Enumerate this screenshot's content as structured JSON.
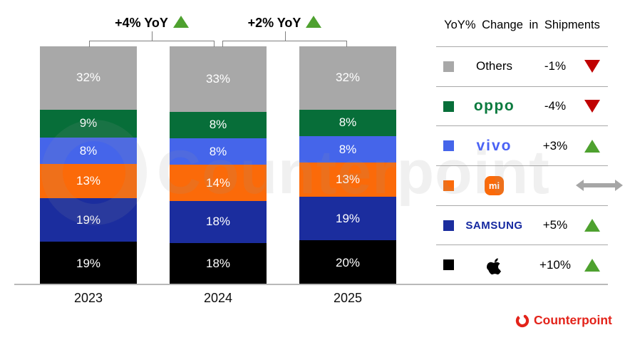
{
  "chart_data": {
    "type": "bar",
    "stacked": true,
    "title": "",
    "categories": [
      "2023",
      "2024",
      "2025"
    ],
    "series_top_to_bottom": [
      {
        "name": "Others",
        "color": "#a8a8a8",
        "values": [
          32,
          33,
          32
        ],
        "labels": [
          "32%",
          "33%",
          "32%"
        ]
      },
      {
        "name": "OPPO",
        "color": "#076e39",
        "values": [
          9,
          8,
          8
        ],
        "labels": [
          "9%",
          "8%",
          "8%"
        ]
      },
      {
        "name": "vivo",
        "color": "#4565ea",
        "values": [
          8,
          8,
          8
        ],
        "labels": [
          "8%",
          "8%",
          "8%"
        ]
      },
      {
        "name": "Xiaomi",
        "color": "#fb6a09",
        "values": [
          13,
          14,
          13
        ],
        "labels": [
          "13%",
          "14%",
          "13%"
        ]
      },
      {
        "name": "Samsung",
        "color": "#1b2d9e",
        "values": [
          19,
          18,
          19
        ],
        "labels": [
          "19%",
          "18%",
          "19%"
        ]
      },
      {
        "name": "Apple",
        "color": "#000000",
        "values": [
          19,
          18,
          20
        ],
        "labels": [
          "19%",
          "18%",
          "20%"
        ]
      }
    ],
    "annotations": [
      {
        "label": "+4% YoY",
        "between": [
          "2023",
          "2024"
        ],
        "direction": "up"
      },
      {
        "label": "+2% YoY",
        "between": [
          "2024",
          "2025"
        ],
        "direction": "up"
      }
    ],
    "value_unit": "%",
    "ylim": [
      0,
      100
    ],
    "grid": false,
    "legend_position": "right"
  },
  "legend": {
    "title": "YoY% Change in Shipments",
    "rows": [
      {
        "name": "Others",
        "display": "Others",
        "change": "-1%",
        "direction": "down"
      },
      {
        "name": "OPPO",
        "display": "oppo",
        "change": "-4%",
        "direction": "down"
      },
      {
        "name": "vivo",
        "display": "vivo",
        "change": "+3%",
        "direction": "up"
      },
      {
        "name": "Xiaomi",
        "display": "mi",
        "change": "",
        "direction": "flat"
      },
      {
        "name": "Samsung",
        "display": "SAMSUNG",
        "change": "+5%",
        "direction": "up"
      },
      {
        "name": "Apple",
        "display": "",
        "change": "+10%",
        "direction": "up"
      }
    ]
  },
  "branding": {
    "logo_text": "Counterpoint"
  },
  "watermark": {
    "text": "Counterpoint"
  },
  "colors": {
    "up_arrow": "#4ea12f",
    "down_arrow": "#c00000",
    "flat_arrow": "#a6a6a6",
    "brand_red": "#e3231a",
    "axis": "#b9b9b9",
    "bracket": "#808080"
  }
}
